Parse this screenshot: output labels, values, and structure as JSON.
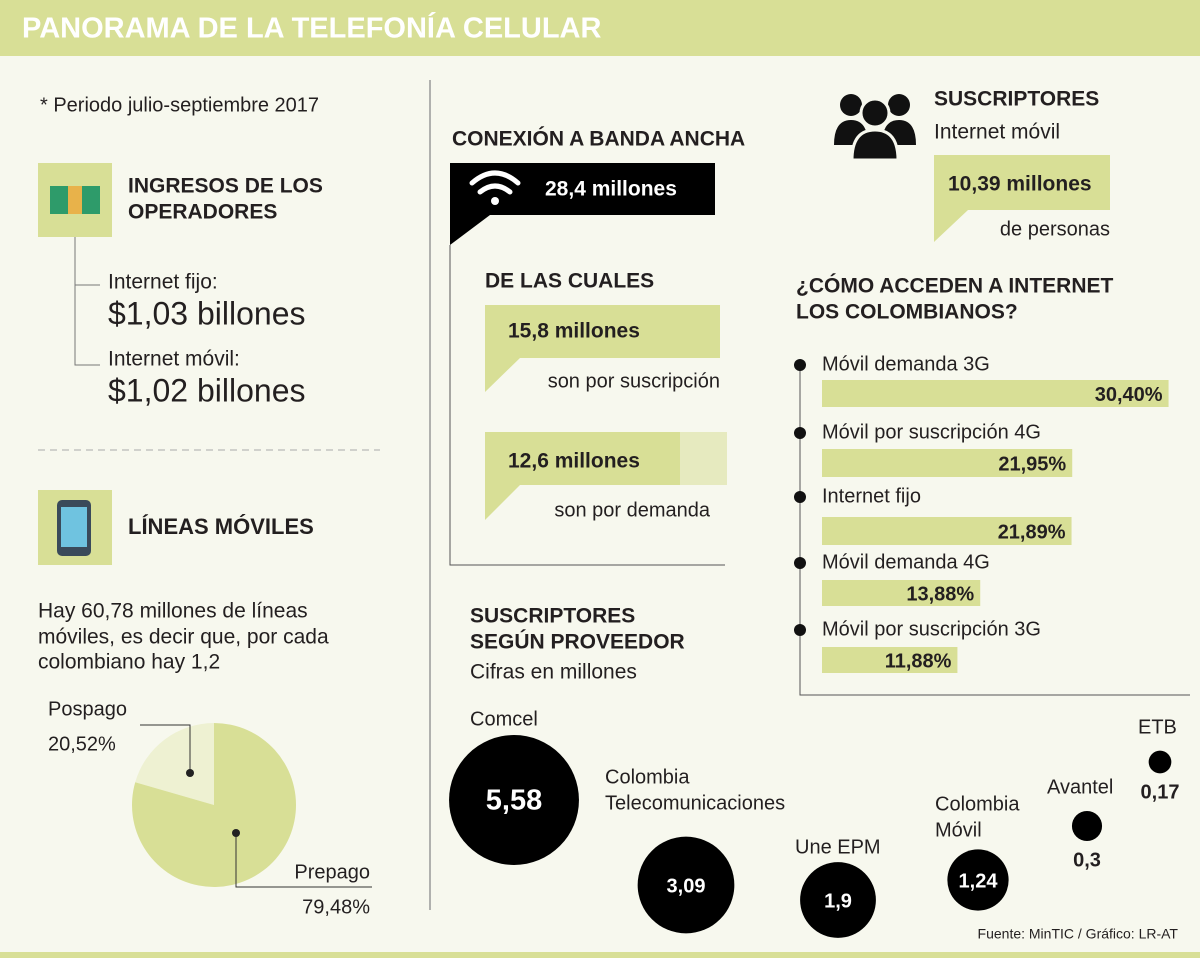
{
  "header": {
    "title": "PANORAMA DE LA TELEFONÍA CELULAR"
  },
  "period": "* Periodo julio-septiembre 2017",
  "revenue": {
    "title_lines": [
      "INGRESOS DE LOS",
      "OPERADORES"
    ],
    "items": [
      {
        "label": "Internet fijo:",
        "value": "$1,03 billones"
      },
      {
        "label": "Internet móvil:",
        "value": "$1,02 billones"
      }
    ]
  },
  "lines": {
    "title": "LÍNEAS MÓVILES",
    "text_lines": [
      "Hay 60,78 millones de líneas",
      "móviles, es decir que, por cada",
      "colombiano hay 1,2"
    ],
    "pie": {
      "type": "pie",
      "categories": [
        "Pospago",
        "Prepago"
      ],
      "values": [
        20.52,
        79.48
      ],
      "value_labels": [
        "20,52%",
        "79,48%"
      ],
      "colors": [
        "#eef1d2",
        "#d8df96"
      ]
    }
  },
  "broadband": {
    "title": "CONEXIÓN A BANDA ANCHA",
    "total": "28,4 millones",
    "subtitle": "DE LAS CUALES",
    "items": [
      {
        "value": "15,8 millones",
        "label": "son por suscripción"
      },
      {
        "value": "12,6 millones",
        "label": "son por demanda"
      }
    ]
  },
  "subscribers": {
    "title": "SUSCRIPTORES",
    "subtitle": "Internet móvil",
    "value": "10,39 millones",
    "note": "de personas"
  },
  "access": {
    "type": "bar",
    "title_lines": [
      "¿CÓMO ACCEDEN A INTERNET",
      "LOS COLOMBIANOS?"
    ],
    "categories": [
      "Móvil demanda 3G",
      "Móvil por suscripción 4G",
      "Internet fijo",
      "Móvil demanda 4G",
      "Móvil por suscripción 3G"
    ],
    "values": [
      30.4,
      21.95,
      21.89,
      13.88,
      11.88
    ],
    "value_labels": [
      "30,40%",
      "21,95%",
      "21,89%",
      "13,88%",
      "11,88%"
    ],
    "color": "#d8df96"
  },
  "providers": {
    "type": "bubble",
    "title_lines": [
      "SUSCRIPTORES",
      "SEGÚN PROVEEDOR"
    ],
    "subtitle": "Cifras en millones",
    "categories": [
      [
        "Comcel"
      ],
      [
        "Colombia",
        "Telecomunicaciones"
      ],
      [
        "Une EPM"
      ],
      [
        "Colombia",
        "Móvil"
      ],
      [
        "Avantel"
      ],
      [
        "ETB"
      ]
    ],
    "values": [
      5.58,
      3.09,
      1.9,
      1.24,
      0.3,
      0.17
    ],
    "value_labels": [
      "5,58",
      "3,09",
      "1,9",
      "1,24",
      "0,3",
      "0,17"
    ],
    "color": "#000000"
  },
  "source": "Fuente: MinTIC / Gráfico: LR-AT"
}
